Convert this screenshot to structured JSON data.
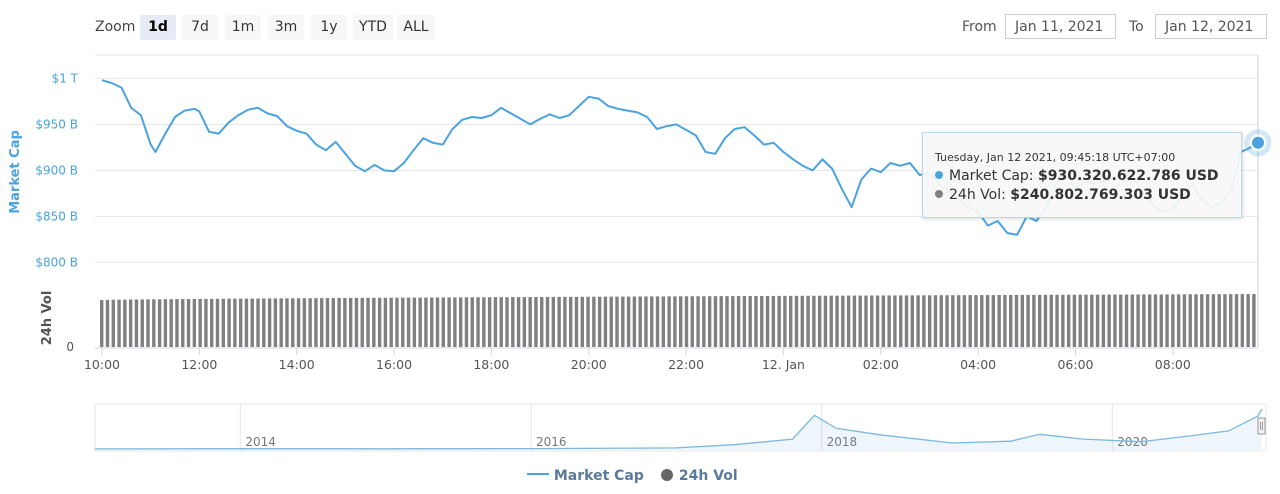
{
  "toolbar": {
    "zoom_label": "Zoom",
    "zoom_buttons": [
      "1d",
      "7d",
      "1m",
      "3m",
      "1y",
      "YTD",
      "ALL"
    ],
    "active_zoom": "1d",
    "from_label": "From",
    "from_value": "Jan 11, 2021",
    "to_label": "To",
    "to_value": "Jan 12, 2021"
  },
  "tooltip": {
    "date": "Tuesday, Jan 12 2021, 09:45:18 UTC+07:00",
    "market_cap_label": "Market Cap:",
    "market_cap_value": "$930.320.622.786 USD",
    "vol_label": "24h Vol:",
    "vol_value": "$240.802.769.303 USD"
  },
  "legend": {
    "market_cap": "Market Cap",
    "vol": "24h Vol"
  },
  "colors": {
    "market_cap": "#4aa3df",
    "volume": "#808080",
    "navigator": "#7cb7de"
  },
  "chart_data": [
    {
      "type": "line",
      "ylabel": "Market Cap",
      "xlabel": "",
      "ylim": [
        770,
        1020
      ],
      "yticks": [
        {
          "value": 1000,
          "label": "$1 T"
        },
        {
          "value": 950,
          "label": "$950 B"
        },
        {
          "value": 900,
          "label": "$900 B"
        },
        {
          "value": 850,
          "label": "$850 B"
        },
        {
          "value": 800,
          "label": "$800 B"
        }
      ],
      "xlim": [
        0,
        23.75
      ],
      "xticks": [
        {
          "value": 0,
          "label": "10:00"
        },
        {
          "value": 2,
          "label": "12:00"
        },
        {
          "value": 4,
          "label": "14:00"
        },
        {
          "value": 6,
          "label": "16:00"
        },
        {
          "value": 8,
          "label": "18:00"
        },
        {
          "value": 10,
          "label": "20:00"
        },
        {
          "value": 12,
          "label": "22:00"
        },
        {
          "value": 14,
          "label": "12. Jan"
        },
        {
          "value": 16,
          "label": "02:00"
        },
        {
          "value": 18,
          "label": "04:00"
        },
        {
          "value": 20,
          "label": "06:00"
        },
        {
          "value": 22,
          "label": "08:00"
        }
      ],
      "series": [
        {
          "name": "Market Cap",
          "points": [
            [
              0,
              998
            ],
            [
              0.2,
              995
            ],
            [
              0.4,
              990
            ],
            [
              0.6,
              968
            ],
            [
              0.8,
              960
            ],
            [
              1.0,
              928
            ],
            [
              1.1,
              920
            ],
            [
              1.3,
              940
            ],
            [
              1.5,
              958
            ],
            [
              1.7,
              965
            ],
            [
              1.9,
              967
            ],
            [
              2.0,
              964
            ],
            [
              2.2,
              942
            ],
            [
              2.4,
              940
            ],
            [
              2.6,
              952
            ],
            [
              2.8,
              960
            ],
            [
              3.0,
              966
            ],
            [
              3.2,
              968
            ],
            [
              3.4,
              962
            ],
            [
              3.6,
              959
            ],
            [
              3.8,
              948
            ],
            [
              4.0,
              943
            ],
            [
              4.2,
              940
            ],
            [
              4.4,
              928
            ],
            [
              4.6,
              922
            ],
            [
              4.8,
              931
            ],
            [
              5.0,
              918
            ],
            [
              5.2,
              905
            ],
            [
              5.4,
              899
            ],
            [
              5.6,
              906
            ],
            [
              5.8,
              900
            ],
            [
              6.0,
              899
            ],
            [
              6.2,
              908
            ],
            [
              6.4,
              922
            ],
            [
              6.6,
              935
            ],
            [
              6.8,
              930
            ],
            [
              7.0,
              928
            ],
            [
              7.2,
              945
            ],
            [
              7.4,
              955
            ],
            [
              7.6,
              958
            ],
            [
              7.8,
              957
            ],
            [
              8.0,
              960
            ],
            [
              8.2,
              968
            ],
            [
              8.4,
              962
            ],
            [
              8.6,
              956
            ],
            [
              8.8,
              950
            ],
            [
              9.0,
              956
            ],
            [
              9.2,
              961
            ],
            [
              9.4,
              957
            ],
            [
              9.6,
              960
            ],
            [
              9.8,
              970
            ],
            [
              10.0,
              980
            ],
            [
              10.2,
              978
            ],
            [
              10.4,
              970
            ],
            [
              10.6,
              967
            ],
            [
              10.8,
              965
            ],
            [
              11.0,
              963
            ],
            [
              11.2,
              958
            ],
            [
              11.4,
              945
            ],
            [
              11.6,
              948
            ],
            [
              11.8,
              950
            ],
            [
              12.0,
              944
            ],
            [
              12.2,
              938
            ],
            [
              12.4,
              920
            ],
            [
              12.6,
              918
            ],
            [
              12.8,
              935
            ],
            [
              13.0,
              945
            ],
            [
              13.2,
              947
            ],
            [
              13.4,
              938
            ],
            [
              13.6,
              928
            ],
            [
              13.8,
              930
            ],
            [
              14.0,
              920
            ],
            [
              14.2,
              912
            ],
            [
              14.4,
              905
            ],
            [
              14.6,
              900
            ],
            [
              14.8,
              912
            ],
            [
              15.0,
              902
            ],
            [
              15.2,
              880
            ],
            [
              15.4,
              860
            ],
            [
              15.6,
              890
            ],
            [
              15.8,
              902
            ],
            [
              16.0,
              898
            ],
            [
              16.2,
              908
            ],
            [
              16.4,
              905
            ],
            [
              16.6,
              908
            ],
            [
              16.8,
              895
            ],
            [
              17.0,
              897
            ],
            [
              17.2,
              885
            ],
            [
              17.4,
              878
            ],
            [
              17.6,
              868
            ],
            [
              17.8,
              860
            ],
            [
              18.0,
              855
            ],
            [
              18.2,
              840
            ],
            [
              18.4,
              845
            ],
            [
              18.6,
              832
            ],
            [
              18.8,
              830
            ],
            [
              19.0,
              850
            ],
            [
              19.2,
              845
            ],
            [
              19.4,
              860
            ],
            [
              19.6,
              885
            ],
            [
              19.8,
              900
            ],
            [
              20.0,
              880
            ],
            [
              20.2,
              888
            ],
            [
              20.4,
              885
            ],
            [
              20.6,
              889
            ],
            [
              20.8,
              892
            ],
            [
              21.0,
              897
            ],
            [
              21.2,
              892
            ],
            [
              21.4,
              875
            ],
            [
              21.6,
              862
            ],
            [
              21.8,
              855
            ],
            [
              22.0,
              858
            ],
            [
              22.2,
              872
            ],
            [
              22.4,
              885
            ],
            [
              22.6,
              868
            ],
            [
              22.8,
              860
            ],
            [
              23.0,
              865
            ],
            [
              23.2,
              878
            ],
            [
              23.4,
              920
            ],
            [
              23.6,
              925
            ],
            [
              23.75,
              930
            ]
          ]
        }
      ]
    },
    {
      "type": "bar",
      "ylabel": "24h Vol",
      "yticks": [
        {
          "value": 0,
          "label": "0"
        }
      ],
      "series": [
        {
          "name": "24h Vol",
          "start_value": 214,
          "end_value": 240.8,
          "unit": "B USD"
        }
      ]
    },
    {
      "type": "area",
      "xticks": [
        "2014",
        "2016",
        "2018",
        "2020"
      ],
      "series": [
        {
          "name": "Market Cap",
          "points": [
            [
              2013.0,
              2
            ],
            [
              2014.0,
              8
            ],
            [
              2015.0,
              5
            ],
            [
              2016.0,
              9
            ],
            [
              2017.0,
              25
            ],
            [
              2017.4,
              100
            ],
            [
              2017.8,
              230
            ],
            [
              2017.95,
              780
            ],
            [
              2018.1,
              480
            ],
            [
              2018.4,
              330
            ],
            [
              2018.9,
              140
            ],
            [
              2019.3,
              180
            ],
            [
              2019.5,
              340
            ],
            [
              2019.8,
              230
            ],
            [
              2020.2,
              170
            ],
            [
              2020.5,
              290
            ],
            [
              2020.8,
              420
            ],
            [
              2021.0,
              760
            ],
            [
              2021.03,
              930
            ]
          ]
        }
      ]
    }
  ]
}
